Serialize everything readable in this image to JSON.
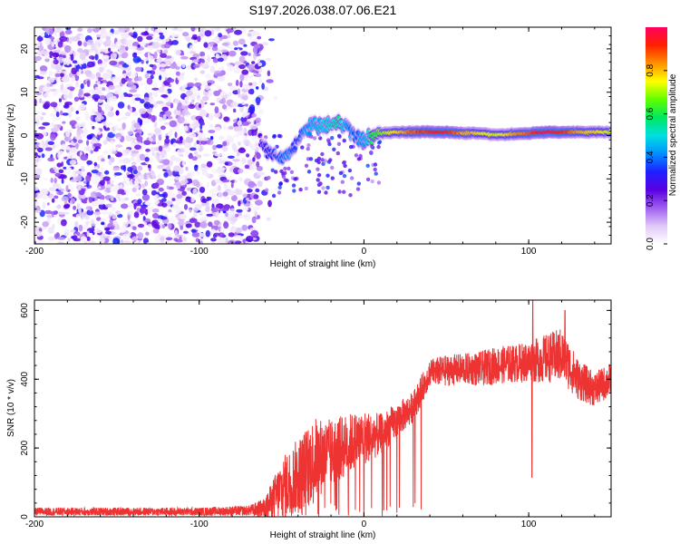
{
  "title": "S197.2026.038.07.06.E21",
  "chart_data": [
    {
      "type": "heatmap",
      "xlabel": "Height of straight line (km)",
      "ylabel": "Frequency (Hz)",
      "xlim": [
        -200,
        150
      ],
      "ylim": [
        -25,
        25
      ],
      "xticks": [
        -200,
        -100,
        0,
        100
      ],
      "yticks": [
        -20,
        -10,
        0,
        10,
        20
      ],
      "noise_region_x": [
        -200,
        -63
      ],
      "noise_amplitude_range": [
        0.02,
        0.35
      ],
      "signal_track": [
        {
          "x": -63,
          "y": -1.5,
          "amp": 0.22
        },
        {
          "x": -60,
          "y": -3.0,
          "amp": 0.28
        },
        {
          "x": -55,
          "y": -4.5,
          "amp": 0.32
        },
        {
          "x": -50,
          "y": -5.5,
          "amp": 0.36
        },
        {
          "x": -45,
          "y": -4.0,
          "amp": 0.38
        },
        {
          "x": -40,
          "y": -1.0,
          "amp": 0.3
        },
        {
          "x": -35,
          "y": 1.5,
          "amp": 0.4
        },
        {
          "x": -30,
          "y": 2.5,
          "amp": 0.42
        },
        {
          "x": -25,
          "y": 2.0,
          "amp": 0.45
        },
        {
          "x": -20,
          "y": 2.5,
          "amp": 0.48
        },
        {
          "x": -15,
          "y": 3.0,
          "amp": 0.52
        },
        {
          "x": -10,
          "y": 2.0,
          "amp": 0.4
        },
        {
          "x": -5,
          "y": -0.5,
          "amp": 0.36
        },
        {
          "x": 0,
          "y": -1.0,
          "amp": 0.4
        },
        {
          "x": 5,
          "y": -0.2,
          "amp": 0.55
        },
        {
          "x": 10,
          "y": 0.5,
          "amp": 0.65
        },
        {
          "x": 20,
          "y": 0.8,
          "amp": 0.75
        },
        {
          "x": 30,
          "y": 0.8,
          "amp": 0.85
        },
        {
          "x": 40,
          "y": 0.8,
          "amp": 0.9
        },
        {
          "x": 50,
          "y": 0.8,
          "amp": 0.92
        },
        {
          "x": 60,
          "y": 0.6,
          "amp": 0.8
        },
        {
          "x": 70,
          "y": 0.5,
          "amp": 0.75
        },
        {
          "x": 80,
          "y": 0.2,
          "amp": 0.7
        },
        {
          "x": 90,
          "y": 0.3,
          "amp": 0.78
        },
        {
          "x": 100,
          "y": 0.5,
          "amp": 0.85
        },
        {
          "x": 110,
          "y": 0.8,
          "amp": 0.95
        },
        {
          "x": 120,
          "y": 0.8,
          "amp": 0.9
        },
        {
          "x": 130,
          "y": 0.8,
          "amp": 0.8
        },
        {
          "x": 140,
          "y": 0.8,
          "amp": 0.75
        },
        {
          "x": 150,
          "y": 0.8,
          "amp": 0.7
        }
      ],
      "colorbar": {
        "label": "Normalized spectral amplitude",
        "range": [
          0,
          1
        ],
        "ticks": [
          "0.0",
          "0.2",
          "0.4",
          "0.6",
          "0.8"
        ],
        "tick_values": [
          0.0,
          0.2,
          0.4,
          0.6,
          0.8
        ],
        "colors": [
          "#ffffff",
          "#e0c8f8",
          "#9f5cf0",
          "#5a00e0",
          "#2020ff",
          "#0090ff",
          "#00e0e0",
          "#00e860",
          "#60ff00",
          "#ffff00",
          "#ff9000",
          "#ff2000",
          "#ff0060"
        ]
      }
    },
    {
      "type": "line",
      "xlabel": "Height of straight line (km)",
      "ylabel": "SNR (10 * v/v)",
      "xlim": [
        -200,
        150
      ],
      "ylim": [
        0,
        630
      ],
      "xticks": [
        -200,
        -100,
        0,
        100
      ],
      "yticks": [
        0,
        200,
        400,
        600
      ],
      "line_color": "#ee3333",
      "envelope": {
        "x": [
          -200,
          -150,
          -100,
          -70,
          -60,
          -50,
          -40,
          -30,
          -20,
          -10,
          0,
          10,
          20,
          30,
          40,
          50,
          60,
          70,
          80,
          90,
          100,
          110,
          120,
          130,
          140,
          150
        ],
        "mean": [
          15,
          15,
          15,
          18,
          25,
          80,
          120,
          170,
          185,
          210,
          230,
          240,
          280,
          320,
          420,
          425,
          430,
          430,
          440,
          445,
          450,
          460,
          470,
          400,
          370,
          400
        ],
        "amp": [
          12,
          12,
          12,
          15,
          30,
          90,
          110,
          120,
          100,
          90,
          80,
          60,
          50,
          45,
          40,
          45,
          45,
          50,
          55,
          55,
          60,
          70,
          80,
          60,
          50,
          50
        ]
      },
      "spikes": [
        {
          "x": 0,
          "y": 0
        },
        {
          "x": 12,
          "y": 20
        },
        {
          "x": 102,
          "y": 115
        },
        {
          "x": 102.5,
          "y": 630
        },
        {
          "x": 122,
          "y": 600
        }
      ]
    }
  ]
}
